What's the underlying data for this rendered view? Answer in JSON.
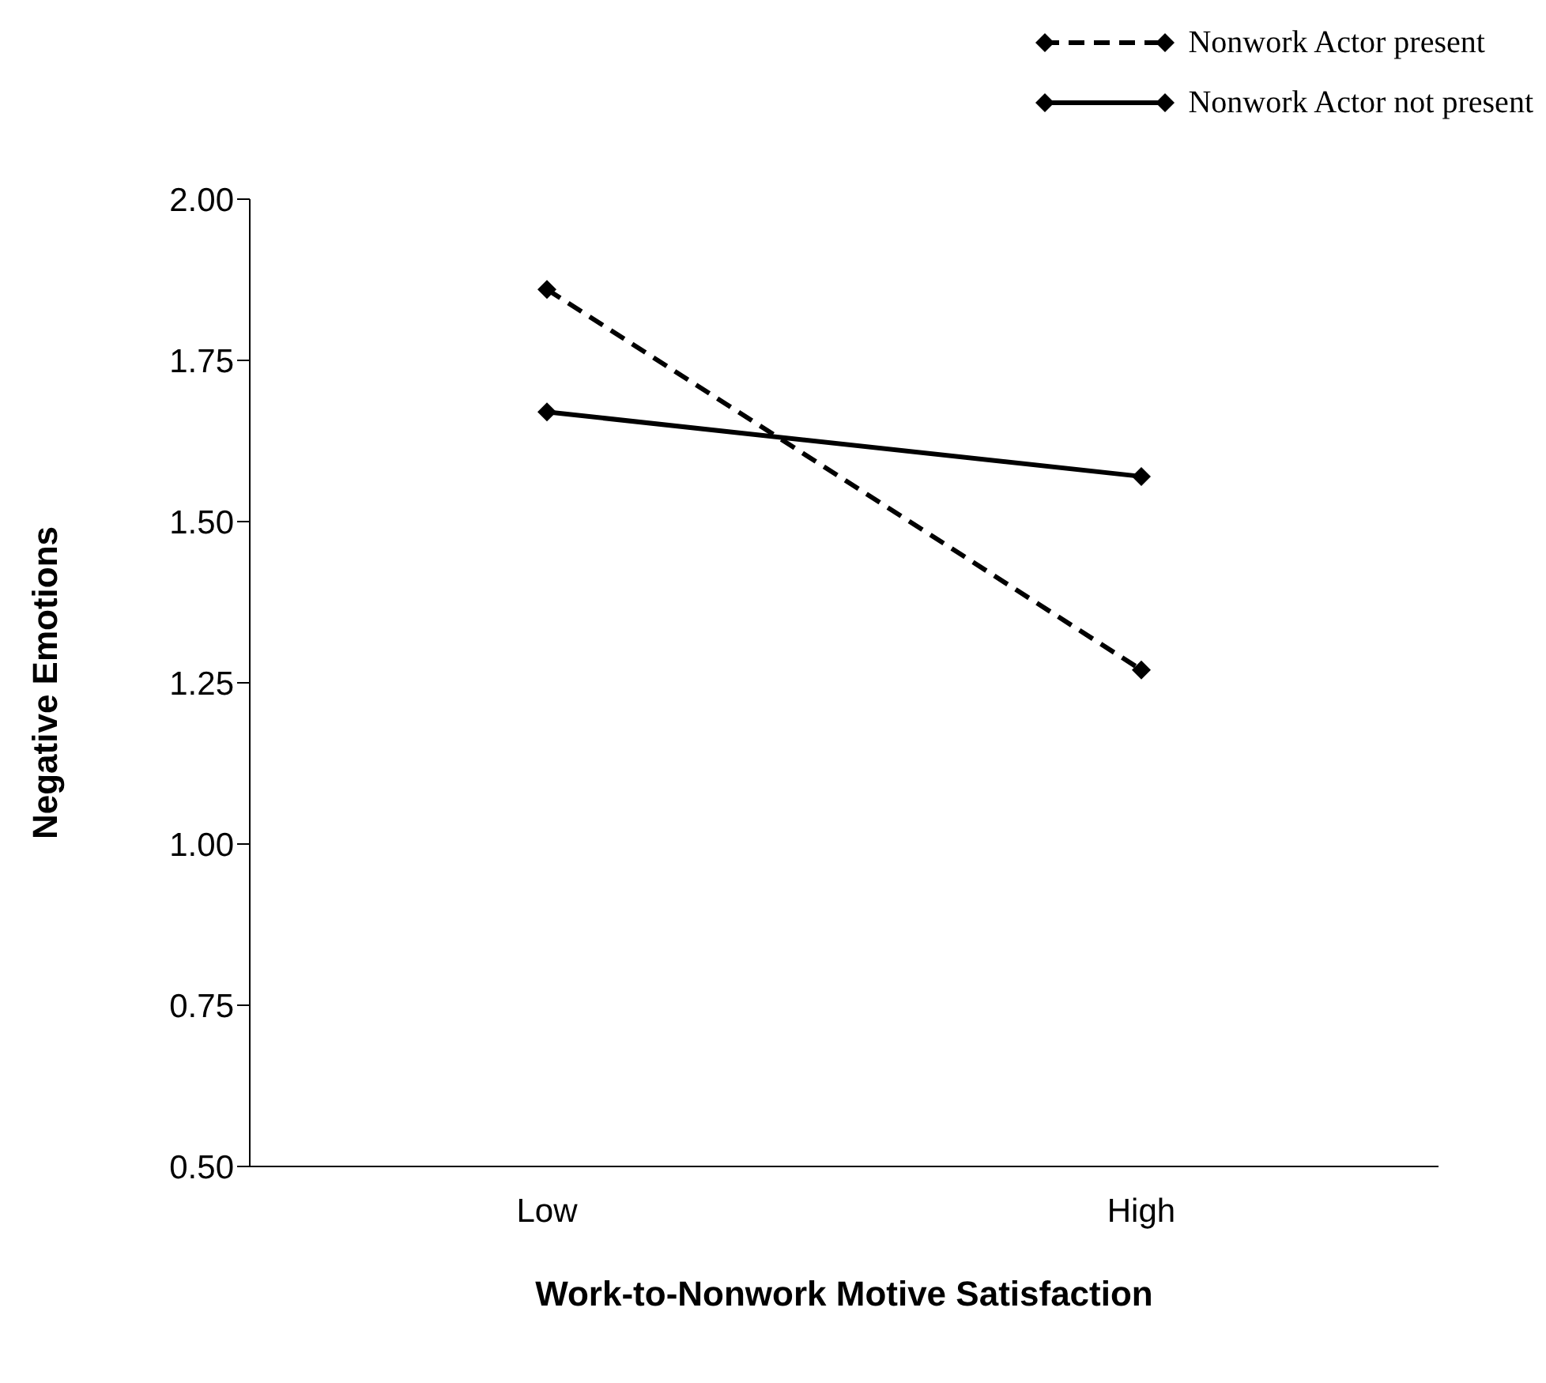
{
  "chart_data": {
    "type": "line",
    "xlabel": "Work-to-Nonwork Motive Satisfaction",
    "ylabel": "Negative Emotions",
    "categories": [
      "Low",
      "High"
    ],
    "series": [
      {
        "name": "Nonwork Actor present",
        "color": "#000000",
        "values": [
          1.86,
          1.27
        ],
        "line_style": "dashed"
      },
      {
        "name": "Nonwork Actor not present",
        "color": "#000000",
        "values": [
          1.67,
          1.57
        ],
        "line_style": "solid"
      }
    ],
    "ylim": [
      0.5,
      2.0
    ],
    "yticks": [
      {
        "value": 0.5,
        "label": "0.50"
      },
      {
        "value": 0.75,
        "label": "0.75"
      },
      {
        "value": 1.0,
        "label": "1.00"
      },
      {
        "value": 1.25,
        "label": "1.25"
      },
      {
        "value": 1.5,
        "label": "1.50"
      },
      {
        "value": 1.75,
        "label": "1.75"
      },
      {
        "value": 2.0,
        "label": "2.00"
      }
    ],
    "grid": false,
    "legend": "top right",
    "marker": "diamond"
  }
}
